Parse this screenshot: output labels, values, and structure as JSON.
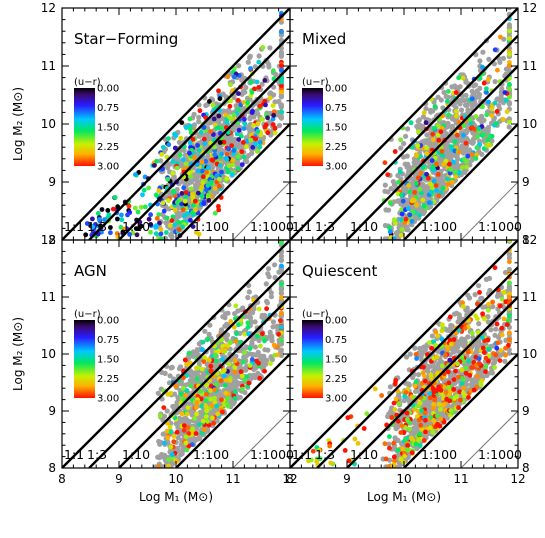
{
  "chart_data": {
    "type": "scatter",
    "xlabel": "Log M₁ (M⊙)",
    "ylabel": "Log M₂ (M⊙)",
    "xlim": [
      8,
      12
    ],
    "ylim": [
      8,
      12
    ],
    "xticks": [
      "8",
      "9",
      "10",
      "11",
      "12"
    ],
    "yticks": [
      "8",
      "9",
      "10",
      "11",
      "12"
    ],
    "colorbar": {
      "title": "(u−r)",
      "ticks": [
        "0.00",
        "0.75",
        "1.50",
        "2.25",
        "3.00"
      ],
      "range": [
        0,
        3
      ]
    },
    "ratio_lines": [
      {
        "label": "1:1",
        "ratio": 1
      },
      {
        "label": "1:3",
        "ratio": 3
      },
      {
        "label": "1:10",
        "ratio": 10
      },
      {
        "label": "1:100",
        "ratio": 100
      },
      {
        "label": "1:1000",
        "ratio": 1000
      }
    ],
    "background_color": "#a0a0a0",
    "panels": [
      {
        "title": "Star−Forming",
        "color_center": 1.4,
        "color_spread": 0.9
      },
      {
        "title": "Mixed",
        "color_center": 2.0,
        "color_spread": 0.7
      },
      {
        "title": "AGN",
        "color_center": 2.3,
        "color_spread": 0.6
      },
      {
        "title": "Quiescent",
        "color_center": 2.5,
        "color_spread": 0.6
      }
    ]
  }
}
